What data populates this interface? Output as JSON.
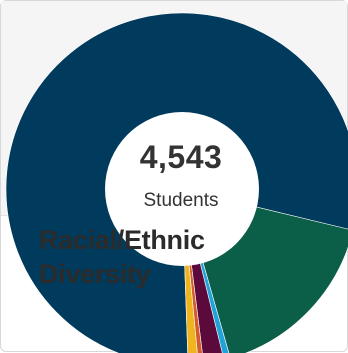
{
  "colors": {
    "background": "#ffffff",
    "band": "#f5f5f5",
    "text": "#333333"
  },
  "card": {
    "title": "Racial/Ethnic Diversity"
  },
  "center": {
    "total": "4,543",
    "label": "Students"
  },
  "chart_data": {
    "type": "pie",
    "donut": true,
    "title": "",
    "legend": "none",
    "total": 4543,
    "series": [
      {
        "value": 3604,
        "color": "#003a5c"
      },
      {
        "value": 763,
        "color": "#0b5e47"
      },
      {
        "value": 27,
        "color": "#1fa3d8"
      },
      {
        "value": 85,
        "color": "#5c0a3c"
      },
      {
        "value": 22,
        "color": "#d35c2c"
      },
      {
        "value": 42,
        "color": "#f0b41e"
      }
    ]
  }
}
